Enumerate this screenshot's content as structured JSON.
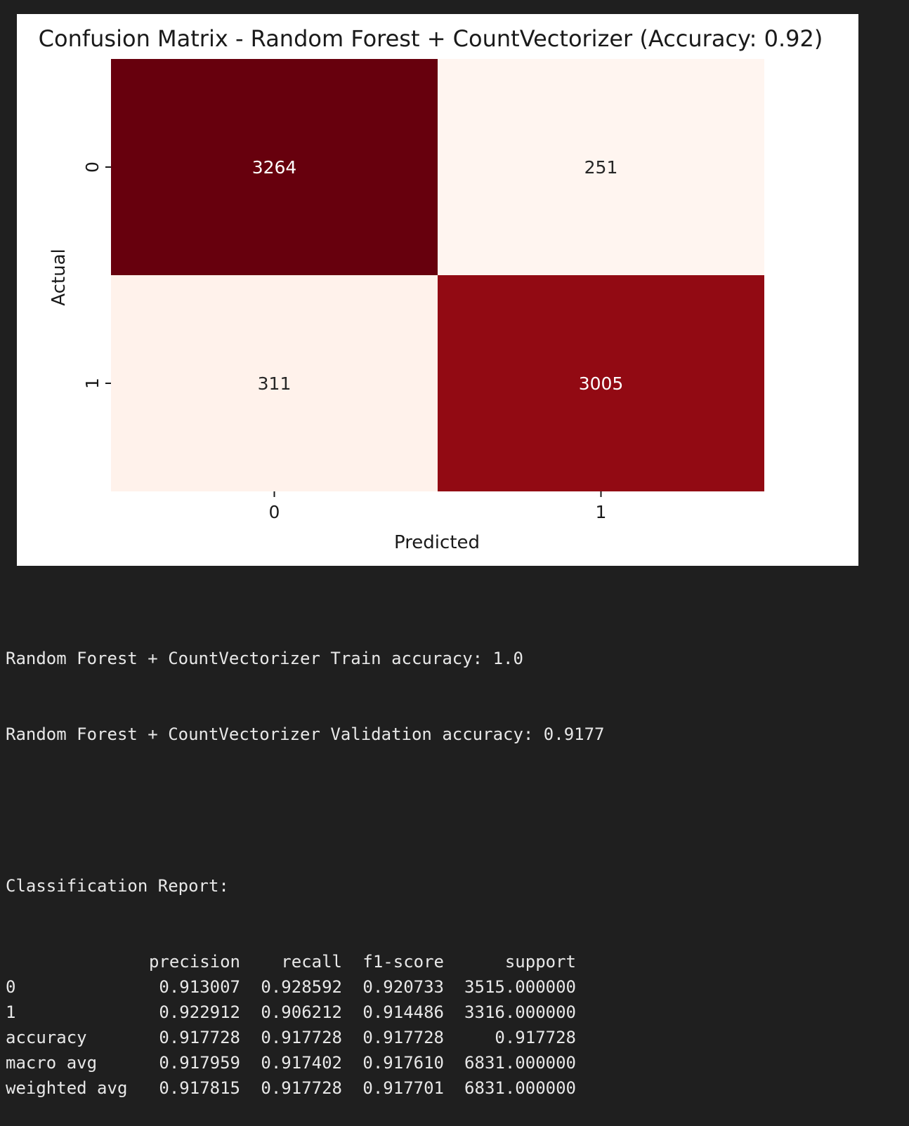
{
  "chart_data": {
    "type": "heatmap",
    "title": "Confusion Matrix - Random Forest + CountVectorizer (Accuracy: 0.92)",
    "xlabel": "Predicted",
    "ylabel": "Actual",
    "x_tick_labels": [
      "0",
      "1"
    ],
    "y_tick_labels": [
      "0",
      "1"
    ],
    "matrix": [
      [
        3264,
        251
      ],
      [
        311,
        3005
      ]
    ],
    "colormap": "Reds",
    "colorbar": false
  },
  "console": {
    "lines": [
      "Random Forest + CountVectorizer Train accuracy: 1.0",
      "Random Forest + CountVectorizer Validation accuracy: 0.9177",
      "",
      "Classification Report:"
    ],
    "report": {
      "columns": [
        "precision",
        "recall",
        "f1-score",
        "support"
      ],
      "rows": [
        {
          "label": "0",
          "values": [
            "0.913007",
            "0.928592",
            "0.920733",
            "3515.000000"
          ]
        },
        {
          "label": "1",
          "values": [
            "0.922912",
            "0.906212",
            "0.914486",
            "3316.000000"
          ]
        },
        {
          "label": "accuracy",
          "values": [
            "0.917728",
            "0.917728",
            "0.917728",
            "0.917728"
          ]
        },
        {
          "label": "macro avg",
          "values": [
            "0.917959",
            "0.917402",
            "0.917610",
            "6831.000000"
          ]
        },
        {
          "label": "weighted avg",
          "values": [
            "0.917815",
            "0.917728",
            "0.917701",
            "6831.000000"
          ]
        }
      ]
    }
  }
}
